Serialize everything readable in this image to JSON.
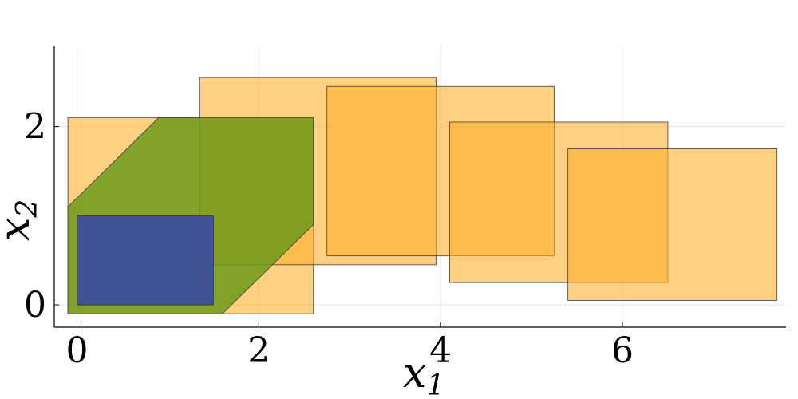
{
  "chart_data": {
    "type": "area",
    "xlabel_main": "x",
    "xlabel_sub": "1",
    "ylabel_main": "x",
    "ylabel_sub": "2",
    "xlim": [
      -0.25,
      7.8
    ],
    "ylim": [
      -0.25,
      2.9
    ],
    "xticks": [
      0,
      2,
      4,
      6
    ],
    "yticks": [
      0,
      2
    ],
    "grid": true,
    "colors": {
      "orange": "#ffb02e",
      "green": "#6c9a1a",
      "blue": "#3d4f9c",
      "edge": "#3a3a3a"
    },
    "boxes": [
      {
        "x": [
          -0.1,
          2.6
        ],
        "y": [
          -0.1,
          2.1
        ]
      },
      {
        "x": [
          1.35,
          3.95
        ],
        "y": [
          0.45,
          2.55
        ]
      },
      {
        "x": [
          2.75,
          5.25
        ],
        "y": [
          0.55,
          2.45
        ]
      },
      {
        "x": [
          4.1,
          6.5
        ],
        "y": [
          0.25,
          2.05
        ]
      },
      {
        "x": [
          5.4,
          7.7
        ],
        "y": [
          0.05,
          1.75
        ]
      }
    ],
    "green_polygon": [
      [
        -0.1,
        1.1
      ],
      [
        0.9,
        2.1
      ],
      [
        2.6,
        2.1
      ],
      [
        2.6,
        0.9
      ],
      [
        1.6,
        -0.1
      ],
      [
        -0.1,
        -0.1
      ]
    ],
    "blue_box": {
      "x": [
        0,
        1.5
      ],
      "y": [
        0,
        1
      ]
    }
  }
}
